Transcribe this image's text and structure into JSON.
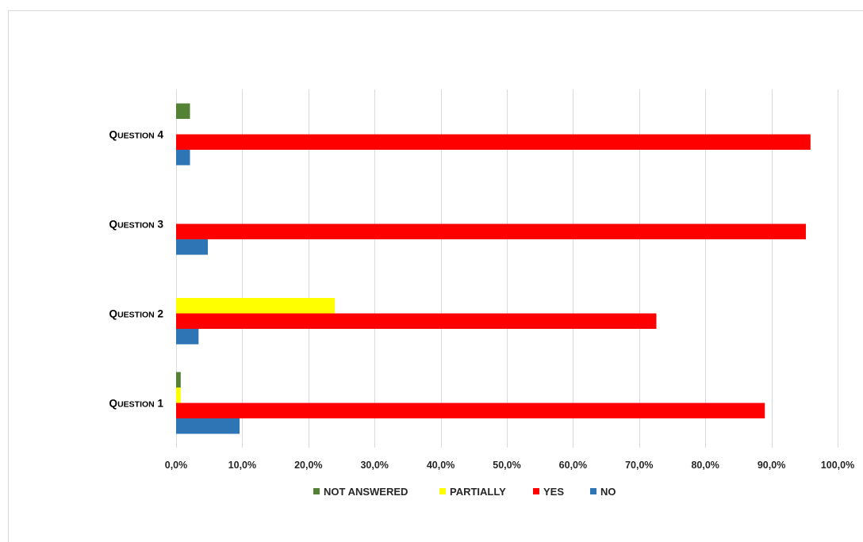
{
  "chart_data": {
    "type": "bar",
    "orientation": "horizontal",
    "categories": [
      "Question 1",
      "Question 2",
      "Question 3",
      "Question 4"
    ],
    "series": [
      {
        "name": "NO",
        "color": "#2e75b6",
        "values": [
          9.6,
          3.4,
          4.8,
          2.1
        ]
      },
      {
        "name": "YES",
        "color": "#ff0000",
        "values": [
          89.0,
          72.6,
          95.2,
          95.9
        ]
      },
      {
        "name": "PARTIALLY",
        "color": "#ffff00",
        "values": [
          0.7,
          24.0,
          0.0,
          0.0
        ]
      },
      {
        "name": "NOT ANSWERED",
        "color": "#548235",
        "values": [
          0.7,
          0.0,
          0.0,
          2.1
        ]
      }
    ],
    "xlim": [
      0,
      100
    ],
    "xticks": [
      0,
      10,
      20,
      30,
      40,
      50,
      60,
      70,
      80,
      90,
      100
    ],
    "xtick_labels": [
      "0,0%",
      "10,0%",
      "20,0%",
      "30,0%",
      "40,0%",
      "50,0%",
      "60,0%",
      "70,0%",
      "80,0%",
      "90,0%",
      "100,0%"
    ],
    "legend_order": [
      "NOT ANSWERED",
      "PARTIALLY",
      "YES",
      "NO"
    ],
    "legend_position": "bottom",
    "grid": "vertical",
    "title": "",
    "xlabel": "",
    "ylabel": ""
  }
}
